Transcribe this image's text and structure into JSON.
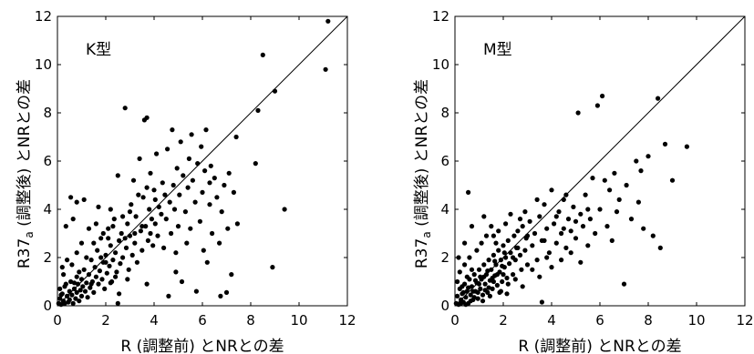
{
  "chart_data": [
    {
      "type": "scatter",
      "panel_label": "K型",
      "xlabel": "R (調整前) とNRとの差",
      "ylabel_main": "R37",
      "ylabel_sub": "a",
      "ylabel_rest": " (調整後) とNRとの差",
      "xlim": [
        0,
        12
      ],
      "ylim": [
        0,
        12
      ],
      "xticks": [
        "0",
        "2",
        "4",
        "6",
        "8",
        "10",
        "12"
      ],
      "yticks": [
        "0",
        "2",
        "4",
        "6",
        "8",
        "10",
        "12"
      ],
      "reference_line": "y = x",
      "grid": false,
      "points": [
        [
          0.05,
          0.1
        ],
        [
          0.1,
          0.3
        ],
        [
          0.15,
          0.05
        ],
        [
          0.2,
          0.5
        ],
        [
          0.25,
          0.2
        ],
        [
          0.3,
          0.8
        ],
        [
          0.3,
          0.1
        ],
        [
          0.4,
          0.4
        ],
        [
          0.45,
          0.15
        ],
        [
          0.5,
          0.6
        ],
        [
          0.5,
          0.25
        ],
        [
          0.55,
          1.0
        ],
        [
          0.6,
          0.45
        ],
        [
          0.65,
          0.1
        ],
        [
          0.7,
          0.7
        ],
        [
          0.75,
          0.3
        ],
        [
          0.8,
          1.2
        ],
        [
          0.8,
          0.55
        ],
        [
          0.85,
          0.9
        ],
        [
          0.9,
          0.2
        ],
        [
          0.95,
          0.65
        ],
        [
          1.0,
          1.1
        ],
        [
          1.0,
          0.4
        ],
        [
          1.05,
          0.8
        ],
        [
          1.1,
          1.5
        ],
        [
          1.15,
          0.6
        ],
        [
          1.2,
          0.95
        ],
        [
          1.25,
          0.35
        ],
        [
          1.3,
          1.3
        ],
        [
          1.35,
          0.75
        ],
        [
          1.4,
          1.9
        ],
        [
          1.45,
          1.0
        ],
        [
          1.5,
          0.55
        ],
        [
          1.55,
          1.6
        ],
        [
          1.6,
          1.2
        ],
        [
          1.65,
          2.3
        ],
        [
          1.7,
          0.9
        ],
        [
          1.75,
          1.45
        ],
        [
          1.8,
          2.8
        ],
        [
          1.85,
          1.1
        ],
        [
          1.9,
          1.8
        ],
        [
          1.95,
          0.7
        ],
        [
          2.0,
          2.1
        ],
        [
          2.05,
          1.35
        ],
        [
          2.1,
          3.2
        ],
        [
          2.15,
          1.65
        ],
        [
          2.2,
          2.5
        ],
        [
          2.25,
          1.0
        ],
        [
          2.3,
          1.9
        ],
        [
          2.35,
          3.6
        ],
        [
          2.4,
          2.2
        ],
        [
          2.45,
          1.4
        ],
        [
          2.5,
          5.4
        ],
        [
          2.55,
          2.7
        ],
        [
          2.6,
          1.75
        ],
        [
          2.65,
          3.0
        ],
        [
          2.7,
          2.0
        ],
        [
          2.8,
          8.2
        ],
        [
          2.85,
          2.4
        ],
        [
          2.9,
          3.4
        ],
        [
          2.95,
          1.5
        ],
        [
          3.0,
          2.9
        ],
        [
          3.05,
          4.2
        ],
        [
          3.1,
          2.1
        ],
        [
          3.15,
          5.2
        ],
        [
          3.2,
          2.6
        ],
        [
          3.25,
          3.7
        ],
        [
          3.3,
          1.8
        ],
        [
          3.4,
          6.1
        ],
        [
          3.45,
          3.1
        ],
        [
          3.5,
          2.3
        ],
        [
          3.55,
          4.5
        ],
        [
          3.6,
          7.7
        ],
        [
          3.65,
          3.3
        ],
        [
          3.7,
          7.8
        ],
        [
          3.75,
          2.7
        ],
        [
          3.8,
          4.0
        ],
        [
          3.85,
          5.5
        ],
        [
          3.9,
          3.6
        ],
        [
          3.95,
          2.5
        ],
        [
          4.0,
          4.8
        ],
        [
          4.05,
          3.4
        ],
        [
          4.1,
          6.3
        ],
        [
          4.15,
          2.9
        ],
        [
          4.2,
          4.1
        ],
        [
          4.3,
          3.8
        ],
        [
          4.35,
          5.1
        ],
        [
          4.4,
          2.4
        ],
        [
          4.45,
          4.6
        ],
        [
          4.5,
          3.6
        ],
        [
          4.55,
          6.5
        ],
        [
          4.6,
          0.4
        ],
        [
          4.65,
          4.3
        ],
        [
          4.7,
          3.0
        ],
        [
          4.75,
          7.3
        ],
        [
          4.8,
          5.0
        ],
        [
          4.85,
          4.0
        ],
        [
          4.9,
          2.2
        ],
        [
          4.95,
          5.7
        ],
        [
          5.0,
          3.3
        ],
        [
          5.05,
          4.6
        ],
        [
          5.1,
          6.8
        ],
        [
          5.15,
          1.0
        ],
        [
          5.2,
          5.4
        ],
        [
          5.3,
          3.9
        ],
        [
          5.35,
          2.6
        ],
        [
          5.4,
          4.9
        ],
        [
          5.45,
          6.1
        ],
        [
          5.5,
          3.2
        ],
        [
          5.55,
          7.1
        ],
        [
          5.6,
          5.2
        ],
        [
          5.7,
          4.3
        ],
        [
          5.75,
          0.6
        ],
        [
          5.8,
          5.9
        ],
        [
          5.9,
          3.5
        ],
        [
          5.95,
          6.6
        ],
        [
          6.0,
          4.7
        ],
        [
          6.05,
          2.3
        ],
        [
          6.1,
          5.6
        ],
        [
          6.15,
          7.3
        ],
        [
          6.2,
          1.8
        ],
        [
          6.3,
          4.2
        ],
        [
          6.35,
          5.8
        ],
        [
          6.4,
          3.0
        ],
        [
          6.5,
          5.3
        ],
        [
          6.6,
          4.5
        ],
        [
          6.7,
          2.6
        ],
        [
          6.75,
          0.4
        ],
        [
          6.8,
          3.9
        ],
        [
          6.9,
          5.0
        ],
        [
          7.0,
          0.55
        ],
        [
          7.05,
          3.2
        ],
        [
          7.1,
          5.5
        ],
        [
          7.2,
          1.3
        ],
        [
          7.3,
          4.7
        ],
        [
          7.4,
          7.0
        ],
        [
          7.45,
          3.4
        ],
        [
          8.2,
          5.9
        ],
        [
          8.3,
          8.1
        ],
        [
          8.5,
          10.4
        ],
        [
          8.9,
          1.6
        ],
        [
          9.0,
          8.9
        ],
        [
          9.4,
          4.0
        ],
        [
          11.1,
          9.8
        ],
        [
          11.2,
          11.8
        ],
        [
          0.1,
          0.7
        ],
        [
          0.2,
          1.6
        ],
        [
          0.35,
          0.9
        ],
        [
          0.4,
          1.9
        ],
        [
          0.6,
          1.7
        ],
        [
          0.65,
          3.6
        ],
        [
          0.7,
          0.95
        ],
        [
          0.8,
          2.2
        ],
        [
          0.9,
          1.4
        ],
        [
          1.0,
          2.6
        ],
        [
          1.1,
          4.4
        ],
        [
          1.2,
          2.0
        ],
        [
          1.3,
          3.2
        ],
        [
          1.4,
          0.9
        ],
        [
          1.5,
          2.6
        ],
        [
          1.6,
          3.4
        ],
        [
          1.7,
          4.1
        ],
        [
          1.8,
          2.0
        ],
        [
          1.9,
          3.0
        ],
        [
          2.0,
          1.8
        ],
        [
          2.1,
          2.8
        ],
        [
          2.2,
          4.0
        ],
        [
          2.3,
          3.3
        ],
        [
          2.4,
          1.2
        ],
        [
          2.5,
          0.1
        ],
        [
          2.55,
          0.5
        ],
        [
          2.7,
          3.7
        ],
        [
          2.8,
          2.8
        ],
        [
          3.0,
          3.9
        ],
        [
          3.2,
          3.0
        ],
        [
          3.35,
          4.6
        ],
        [
          3.5,
          3.3
        ],
        [
          3.7,
          4.9
        ],
        [
          3.85,
          3.0
        ],
        [
          4.05,
          4.4
        ],
        [
          0.55,
          4.5
        ],
        [
          0.35,
          3.3
        ],
        [
          0.8,
          4.3
        ],
        [
          2.2,
          0.95
        ],
        [
          2.9,
          1.1
        ],
        [
          3.7,
          0.9
        ],
        [
          4.9,
          1.4
        ],
        [
          6.3,
          5.1
        ],
        [
          0.25,
          1.3
        ],
        [
          0.15,
          0.45
        ]
      ]
    },
    {
      "type": "scatter",
      "panel_label": "M型",
      "xlabel": "R (調整前) とNRとの差",
      "ylabel_main": "R37",
      "ylabel_sub": "a",
      "ylabel_rest": " (調整後) とNRとの差",
      "xlim": [
        0,
        12
      ],
      "ylim": [
        0,
        12
      ],
      "xticks": [
        "0",
        "2",
        "4",
        "6",
        "8",
        "10",
        "12"
      ],
      "yticks": [
        "0",
        "2",
        "4",
        "6",
        "8",
        "10",
        "12"
      ],
      "reference_line": "y = x",
      "grid": false,
      "points": [
        [
          0.05,
          0.1
        ],
        [
          0.1,
          0.4
        ],
        [
          0.15,
          0.05
        ],
        [
          0.2,
          0.7
        ],
        [
          0.25,
          0.25
        ],
        [
          0.3,
          0.5
        ],
        [
          0.35,
          0.15
        ],
        [
          0.4,
          0.9
        ],
        [
          0.45,
          0.35
        ],
        [
          0.5,
          0.6
        ],
        [
          0.55,
          0.1
        ],
        [
          0.6,
          1.1
        ],
        [
          0.65,
          0.45
        ],
        [
          0.7,
          0.8
        ],
        [
          0.75,
          0.25
        ],
        [
          0.8,
          1.3
        ],
        [
          0.85,
          0.6
        ],
        [
          0.9,
          0.95
        ],
        [
          0.95,
          0.3
        ],
        [
          1.0,
          1.5
        ],
        [
          1.05,
          0.7
        ],
        [
          1.1,
          1.1
        ],
        [
          1.15,
          0.45
        ],
        [
          1.2,
          1.7
        ],
        [
          1.25,
          0.9
        ],
        [
          1.3,
          1.3
        ],
        [
          1.35,
          0.55
        ],
        [
          1.4,
          1.9
        ],
        [
          1.45,
          1.05
        ],
        [
          1.5,
          1.5
        ],
        [
          1.55,
          0.7
        ],
        [
          1.6,
          2.1
        ],
        [
          1.65,
          1.25
        ],
        [
          1.7,
          1.7
        ],
        [
          1.75,
          0.85
        ],
        [
          1.8,
          2.3
        ],
        [
          1.85,
          1.4
        ],
        [
          1.9,
          1.9
        ],
        [
          1.95,
          1.0
        ],
        [
          2.0,
          2.5
        ],
        [
          2.05,
          1.6
        ],
        [
          2.1,
          2.0
        ],
        [
          2.15,
          1.15
        ],
        [
          2.2,
          2.7
        ],
        [
          2.25,
          1.75
        ],
        [
          2.3,
          2.2
        ],
        [
          2.4,
          1.3
        ],
        [
          2.45,
          2.9
        ],
        [
          2.5,
          1.9
        ],
        [
          2.55,
          2.4
        ],
        [
          2.6,
          3.1
        ],
        [
          2.7,
          2.1
        ],
        [
          2.75,
          1.5
        ],
        [
          2.8,
          3.3
        ],
        [
          2.9,
          2.3
        ],
        [
          2.95,
          2.8
        ],
        [
          3.0,
          1.7
        ],
        [
          3.1,
          3.5
        ],
        [
          3.2,
          2.5
        ],
        [
          3.3,
          3.0
        ],
        [
          3.4,
          1.9
        ],
        [
          3.5,
          3.7
        ],
        [
          3.6,
          2.7
        ],
        [
          3.7,
          4.2
        ],
        [
          3.8,
          3.2
        ],
        [
          3.9,
          2.2
        ],
        [
          4.0,
          4.8
        ],
        [
          4.1,
          3.4
        ],
        [
          4.2,
          2.6
        ],
        [
          4.3,
          3.9
        ],
        [
          4.4,
          3.0
        ],
        [
          4.5,
          4.4
        ],
        [
          4.6,
          2.4
        ],
        [
          4.7,
          3.6
        ],
        [
          4.8,
          3.1
        ],
        [
          4.9,
          4.1
        ],
        [
          5.0,
          2.8
        ],
        [
          5.1,
          8.0
        ],
        [
          5.2,
          3.8
        ],
        [
          5.3,
          3.3
        ],
        [
          5.4,
          4.6
        ],
        [
          5.5,
          2.5
        ],
        [
          5.6,
          3.6
        ],
        [
          5.7,
          5.3
        ],
        [
          5.8,
          3.0
        ],
        [
          5.9,
          8.3
        ],
        [
          6.0,
          4.0
        ],
        [
          6.1,
          8.7
        ],
        [
          6.2,
          5.2
        ],
        [
          6.3,
          3.3
        ],
        [
          6.4,
          4.8
        ],
        [
          6.5,
          2.7
        ],
        [
          6.6,
          5.5
        ],
        [
          6.7,
          3.9
        ],
        [
          6.8,
          4.4
        ],
        [
          7.0,
          0.9
        ],
        [
          7.1,
          5.0
        ],
        [
          7.3,
          3.6
        ],
        [
          7.5,
          6.0
        ],
        [
          7.6,
          4.3
        ],
        [
          7.7,
          5.6
        ],
        [
          7.8,
          3.2
        ],
        [
          8.0,
          6.2
        ],
        [
          8.2,
          2.9
        ],
        [
          8.4,
          8.6
        ],
        [
          8.5,
          2.4
        ],
        [
          8.7,
          6.7
        ],
        [
          9.0,
          5.2
        ],
        [
          9.6,
          6.6
        ],
        [
          0.1,
          1.0
        ],
        [
          0.2,
          1.4
        ],
        [
          0.3,
          0.8
        ],
        [
          0.4,
          1.7
        ],
        [
          0.5,
          1.2
        ],
        [
          0.6,
          2.0
        ],
        [
          0.7,
          1.5
        ],
        [
          0.8,
          0.35
        ],
        [
          0.9,
          2.3
        ],
        [
          1.0,
          0.9
        ],
        [
          1.1,
          2.6
        ],
        [
          1.2,
          1.2
        ],
        [
          1.3,
          2.9
        ],
        [
          1.4,
          0.75
        ],
        [
          1.5,
          3.3
        ],
        [
          1.6,
          1.0
        ],
        [
          1.7,
          2.6
        ],
        [
          1.8,
          3.1
        ],
        [
          1.9,
          0.6
        ],
        [
          2.0,
          1.3
        ],
        [
          2.1,
          3.4
        ],
        [
          2.2,
          0.9
        ],
        [
          2.3,
          3.8
        ],
        [
          2.4,
          2.0
        ],
        [
          2.5,
          1.1
        ],
        [
          2.6,
          2.4
        ],
        [
          2.7,
          3.6
        ],
        [
          2.8,
          0.8
        ],
        [
          3.0,
          2.9
        ],
        [
          3.2,
          1.5
        ],
        [
          3.4,
          4.4
        ],
        [
          3.5,
          1.2
        ],
        [
          3.6,
          0.15
        ],
        [
          3.8,
          2.0
        ],
        [
          4.0,
          1.6
        ],
        [
          4.2,
          3.7
        ],
        [
          4.4,
          1.9
        ],
        [
          4.6,
          4.6
        ],
        [
          4.8,
          2.2
        ],
        [
          5.0,
          3.5
        ],
        [
          5.2,
          1.8
        ],
        [
          0.25,
          0.1
        ],
        [
          0.35,
          0.55
        ],
        [
          0.45,
          0.05
        ],
        [
          0.55,
          0.75
        ],
        [
          0.65,
          0.2
        ],
        [
          0.75,
          0.6
        ],
        [
          0.85,
          1.05
        ],
        [
          0.95,
          0.55
        ],
        [
          1.05,
          1.2
        ],
        [
          1.15,
          0.2
        ],
        [
          1.25,
          0.65
        ],
        [
          1.35,
          1.45
        ],
        [
          1.45,
          0.4
        ],
        [
          1.55,
          1.15
        ],
        [
          1.65,
          1.85
        ],
        [
          1.75,
          1.3
        ],
        [
          1.85,
          0.55
        ],
        [
          1.95,
          1.65
        ],
        [
          2.05,
          2.2
        ],
        [
          2.15,
          0.5
        ],
        [
          0.15,
          2.0
        ],
        [
          0.4,
          2.6
        ],
        [
          0.7,
          3.3
        ],
        [
          1.2,
          3.7
        ],
        [
          0.55,
          4.7
        ],
        [
          1.6,
          2.9
        ],
        [
          2.9,
          3.9
        ],
        [
          3.7,
          2.7
        ],
        [
          4.5,
          3.2
        ],
        [
          5.5,
          4.0
        ]
      ]
    }
  ]
}
